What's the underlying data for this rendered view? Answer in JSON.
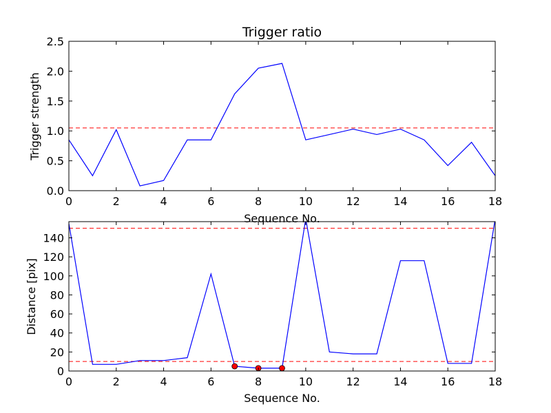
{
  "chart_data": [
    {
      "type": "line",
      "title": "Trigger ratio",
      "xlabel": "Sequence No.",
      "ylabel": "Trigger strength",
      "xlim": [
        0,
        18
      ],
      "ylim": [
        0,
        2.5
      ],
      "x_ticks": [
        0,
        2,
        4,
        6,
        8,
        10,
        12,
        14,
        16,
        18
      ],
      "y_ticks": [
        0.0,
        0.5,
        1.0,
        1.5,
        2.0,
        2.5
      ],
      "x_tick_labels": [
        "0",
        "2",
        "4",
        "6",
        "8",
        "10",
        "12",
        "14",
        "16",
        "18"
      ],
      "y_tick_labels": [
        "0.0",
        "0.5",
        "1.0",
        "1.5",
        "2.0",
        "2.5"
      ],
      "grid": false,
      "series": [
        {
          "color": "#0000ff",
          "x": [
            0,
            1,
            2,
            3,
            4,
            5,
            6,
            7,
            8,
            9,
            10,
            11,
            12,
            13,
            14,
            15,
            16,
            17,
            18
          ],
          "values": [
            0.85,
            0.25,
            1.02,
            0.08,
            0.17,
            0.85,
            0.85,
            1.62,
            2.05,
            2.13,
            0.85,
            0.94,
            1.03,
            0.94,
            1.03,
            0.85,
            0.42,
            0.81,
            0.25
          ]
        }
      ],
      "hlines": [
        {
          "y": 1.05,
          "color": "#ff0000",
          "style": "dashed"
        }
      ]
    },
    {
      "type": "line",
      "title": "",
      "xlabel": "Sequence No.",
      "ylabel": "Distance [pix]",
      "xlim": [
        0,
        18
      ],
      "ylim": [
        0,
        157
      ],
      "x_ticks": [
        0,
        2,
        4,
        6,
        8,
        10,
        12,
        14,
        16,
        18
      ],
      "y_ticks": [
        0,
        20,
        40,
        60,
        80,
        100,
        120,
        140
      ],
      "x_tick_labels": [
        "0",
        "2",
        "4",
        "6",
        "8",
        "10",
        "12",
        "14",
        "16",
        "18"
      ],
      "y_tick_labels": [
        "0",
        "20",
        "40",
        "60",
        "80",
        "100",
        "120",
        "140"
      ],
      "grid": false,
      "series": [
        {
          "color": "#0000ff",
          "x": [
            0,
            1,
            2,
            3,
            4,
            5,
            6,
            7,
            8,
            9,
            10,
            11,
            12,
            13,
            14,
            15,
            16,
            17,
            18
          ],
          "values": [
            155,
            7,
            7,
            11,
            11,
            14,
            102,
            5,
            3,
            3,
            160,
            20,
            18,
            18,
            116,
            116,
            8,
            8,
            160
          ]
        },
        {
          "color": "#ff0000",
          "marker": "circle",
          "x": [
            7,
            8,
            9
          ],
          "values": [
            5,
            3,
            3
          ]
        }
      ],
      "hlines": [
        {
          "y": 150,
          "color": "#ff0000",
          "style": "dashed"
        },
        {
          "y": 10,
          "color": "#ff0000",
          "style": "dashed"
        }
      ]
    }
  ]
}
